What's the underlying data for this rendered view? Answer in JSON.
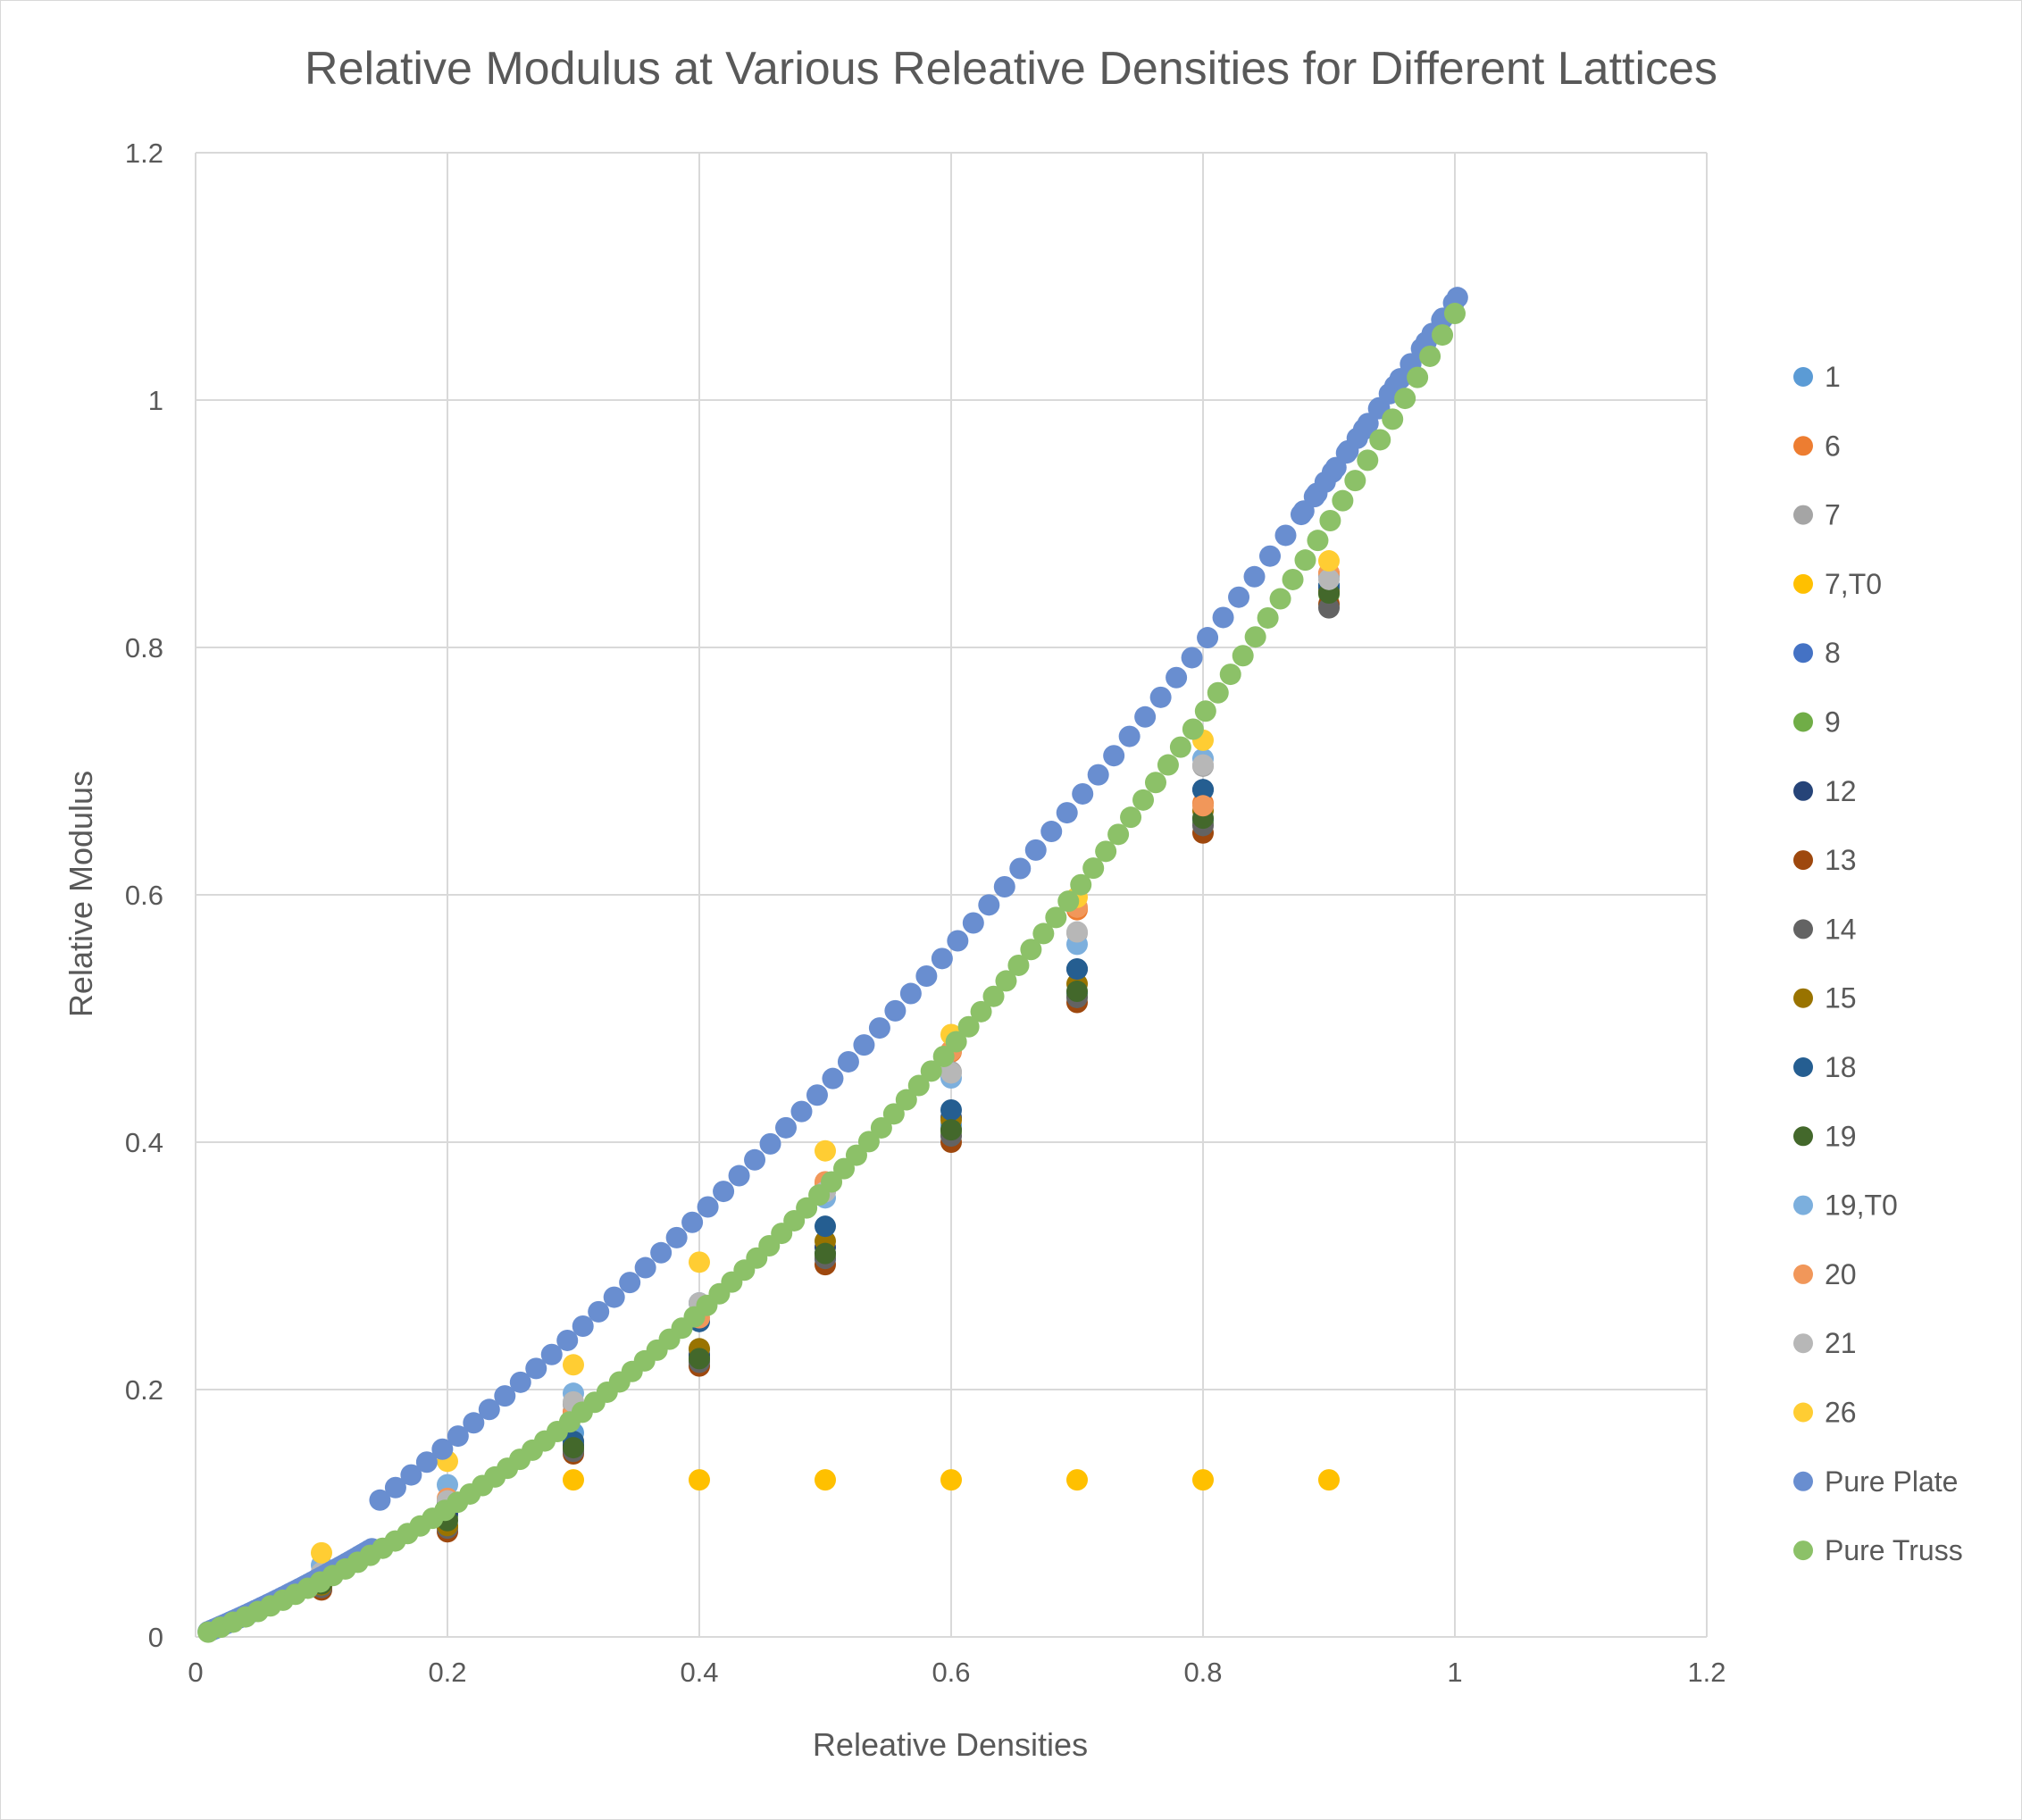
{
  "chart_data": {
    "type": "scatter",
    "title": "Relative Modulus at Various Releative Densities for Different Lattices",
    "xlabel": "Releative Densities",
    "ylabel": "Relative Modulus",
    "xlim": [
      0,
      1.2
    ],
    "ylim": [
      0,
      1.2
    ],
    "xticks": [
      "0",
      "0.2",
      "0.4",
      "0.6",
      "0.8",
      "1",
      "1.2"
    ],
    "yticks": [
      "0",
      "0.2",
      "0.4",
      "0.6",
      "0.8",
      "1",
      "1.2"
    ],
    "grid": true,
    "legend_position": "right",
    "series": [
      {
        "name": "1",
        "color": "#5b9bd5",
        "x": [
          0.1,
          0.2,
          0.3,
          0.4,
          0.5,
          0.6,
          0.7,
          0.8,
          0.9
        ],
        "y": [
          0.048,
          0.103,
          0.165,
          0.232,
          0.305,
          0.414,
          0.52,
          0.66,
          0.85
        ]
      },
      {
        "name": "6",
        "color": "#ed7d31",
        "x": [
          0.1,
          0.2,
          0.3,
          0.4,
          0.5,
          0.6,
          0.7,
          0.8,
          0.9
        ],
        "y": [
          0.052,
          0.11,
          0.182,
          0.262,
          0.367,
          0.473,
          0.588,
          0.674,
          0.86
        ]
      },
      {
        "name": "7",
        "color": "#a5a5a5",
        "x": [
          0.1,
          0.2,
          0.3,
          0.4,
          0.5,
          0.6,
          0.7,
          0.8,
          0.9
        ],
        "y": [
          0.05,
          0.107,
          0.188,
          0.27,
          0.36,
          0.457,
          0.569,
          0.704,
          0.858
        ]
      },
      {
        "name": "7,T0",
        "color": "#ffc000",
        "x": [
          0.3,
          0.4,
          0.5,
          0.6,
          0.7,
          0.8,
          0.9
        ],
        "y": [
          0.127,
          0.127,
          0.127,
          0.127,
          0.127,
          0.127,
          0.127
        ]
      },
      {
        "name": "8",
        "color": "#4472c4",
        "x": [
          0.1,
          0.2,
          0.3,
          0.4,
          0.5,
          0.6,
          0.7,
          0.8,
          0.9
        ],
        "y": [
          0.045,
          0.1,
          0.155,
          0.226,
          0.31,
          0.41,
          0.52,
          0.66,
          0.845
        ]
      },
      {
        "name": "9",
        "color": "#70ad47",
        "x": [
          0.1,
          0.2,
          0.3,
          0.4,
          0.5,
          0.6,
          0.7,
          0.8,
          0.9
        ],
        "y": [
          0.044,
          0.097,
          0.152,
          0.224,
          0.308,
          0.408,
          0.518,
          0.658,
          0.843
        ]
      },
      {
        "name": "12",
        "color": "#264478",
        "x": [
          0.1,
          0.2,
          0.3,
          0.4,
          0.5,
          0.6,
          0.7,
          0.8,
          0.9
        ],
        "y": [
          0.046,
          0.1,
          0.155,
          0.228,
          0.315,
          0.42,
          0.54,
          0.685,
          0.848
        ]
      },
      {
        "name": "13",
        "color": "#9e480e",
        "x": [
          0.1,
          0.2,
          0.3,
          0.4,
          0.5,
          0.6,
          0.7,
          0.8,
          0.9
        ],
        "y": [
          0.038,
          0.085,
          0.148,
          0.219,
          0.301,
          0.4,
          0.513,
          0.65,
          0.835
        ]
      },
      {
        "name": "14",
        "color": "#636363",
        "x": [
          0.1,
          0.2,
          0.3,
          0.4,
          0.5,
          0.6,
          0.7,
          0.8,
          0.9
        ],
        "y": [
          0.04,
          0.088,
          0.15,
          0.222,
          0.306,
          0.405,
          0.517,
          0.656,
          0.832
        ]
      },
      {
        "name": "15",
        "color": "#997300",
        "x": [
          0.1,
          0.2,
          0.3,
          0.4,
          0.5,
          0.6,
          0.7,
          0.8,
          0.9
        ],
        "y": [
          0.042,
          0.09,
          0.158,
          0.233,
          0.32,
          0.418,
          0.528,
          0.668,
          0.845
        ]
      },
      {
        "name": "18",
        "color": "#255e91",
        "x": [
          0.1,
          0.2,
          0.3,
          0.4,
          0.5,
          0.6,
          0.7,
          0.8,
          0.9
        ],
        "y": [
          0.047,
          0.108,
          0.158,
          0.255,
          0.332,
          0.426,
          0.54,
          0.685,
          0.85
        ]
      },
      {
        "name": "19",
        "color": "#43682b",
        "x": [
          0.1,
          0.2,
          0.3,
          0.4,
          0.5,
          0.6,
          0.7,
          0.8,
          0.9
        ],
        "y": [
          0.043,
          0.094,
          0.153,
          0.225,
          0.31,
          0.41,
          0.522,
          0.662,
          0.844
        ]
      },
      {
        "name": "19,T0",
        "color": "#7cafdd",
        "x": [
          0.1,
          0.2,
          0.3,
          0.4,
          0.5,
          0.6,
          0.7,
          0.8,
          0.9
        ],
        "y": [
          0.058,
          0.123,
          0.197,
          0.27,
          0.355,
          0.452,
          0.56,
          0.71,
          0.858
        ]
      },
      {
        "name": "20",
        "color": "#f1975a",
        "x": [
          0.1,
          0.2,
          0.3,
          0.4,
          0.5,
          0.6,
          0.7,
          0.8,
          0.9
        ],
        "y": [
          0.05,
          0.112,
          0.18,
          0.258,
          0.368,
          0.474,
          0.59,
          0.672,
          0.86
        ]
      },
      {
        "name": "21",
        "color": "#b7b7b7",
        "x": [
          0.1,
          0.2,
          0.3,
          0.4,
          0.5,
          0.6,
          0.7,
          0.8,
          0.9
        ],
        "y": [
          0.052,
          0.11,
          0.19,
          0.27,
          0.36,
          0.456,
          0.57,
          0.705,
          0.855
        ]
      },
      {
        "name": "26",
        "color": "#ffcd33",
        "x": [
          0.1,
          0.2,
          0.3,
          0.4,
          0.5,
          0.6,
          0.7,
          0.8,
          0.9
        ],
        "y": [
          0.068,
          0.142,
          0.22,
          0.303,
          0.393,
          0.487,
          0.598,
          0.725,
          0.87
        ]
      },
      {
        "name": "Pure Plate",
        "color": "#698ed0",
        "x": [],
        "y": []
      },
      {
        "name": "Pure Truss",
        "color": "#8cc168",
        "x": [],
        "y": []
      }
    ]
  }
}
